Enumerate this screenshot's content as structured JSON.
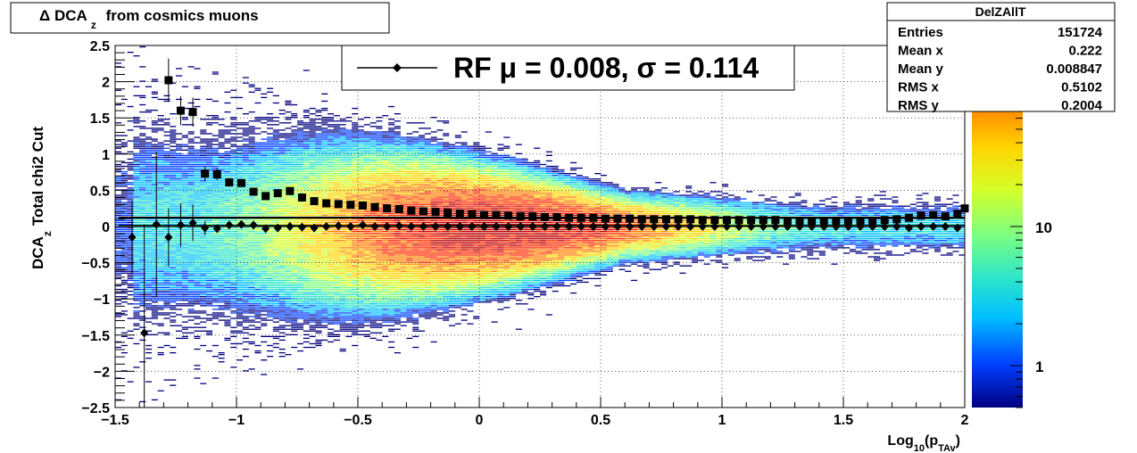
{
  "title": {
    "prefix": "Δ DCA",
    "sub": "z",
    "suffix": "from cosmics muons"
  },
  "stats_box": {
    "name": "DelZAllT",
    "rows": [
      {
        "label": "Entries",
        "value": "151724"
      },
      {
        "label": "Mean x",
        "value": "0.222"
      },
      {
        "label": "Mean y",
        "value": "0.008847"
      },
      {
        "label": "RMS x",
        "value": "0.5102"
      },
      {
        "label": "RMS y",
        "value": "0.2004"
      }
    ]
  },
  "legend": {
    "text": "RF μ =  0.008, σ =   0.114"
  },
  "chart_data": {
    "type": "heatmap",
    "xlabel": {
      "main": "Log",
      "sub1": "10",
      "mid": "(p",
      "sub2": "TAv",
      "end": ")"
    },
    "ylabel": {
      "main": "DCA",
      "sub": "z",
      "rest": "Total chi2 Cut"
    },
    "xlim": [
      -1.5,
      2
    ],
    "ylim": [
      -2.5,
      2.5
    ],
    "xticks": [
      -1.5,
      -1,
      -0.5,
      0,
      0.5,
      1,
      1.5,
      2
    ],
    "xtick_labels": [
      "−1.5",
      "−1",
      "−0.5",
      "0",
      "0.5",
      "1",
      "1.5",
      "2"
    ],
    "yticks": [
      -2.5,
      -2,
      -1.5,
      -1,
      -0.5,
      0,
      0.5,
      1,
      1.5,
      2,
      2.5
    ],
    "ytick_labels": [
      "−2.5",
      "−2",
      "−1.5",
      "−1",
      "−0.5",
      "0",
      "0.5",
      "1",
      "1.5",
      "2",
      "2.5"
    ],
    "grid": true,
    "z_scale": "log",
    "zlim": [
      0.5,
      200
    ],
    "colorbar_ticks": [
      1,
      10
    ],
    "colorbar_tick_labels": [
      "1",
      "10"
    ],
    "colormap": [
      "#00007f",
      "#0040ff",
      "#00bfff",
      "#2ee6c8",
      "#7fff7f",
      "#d4ff2a",
      "#ffd400",
      "#ff7f00",
      "#ff2a00",
      "#bf0000"
    ],
    "series": [
      {
        "marker": "diamond",
        "x": [
          -1.43,
          -1.38,
          -1.33,
          -1.28,
          -1.23,
          -1.18,
          -1.13,
          -1.08,
          -1.03,
          -0.98,
          -0.93,
          -0.88,
          -0.83,
          -0.78,
          -0.73,
          -0.68,
          -0.63,
          -0.58,
          -0.53,
          -0.48,
          -0.43,
          -0.38,
          -0.33,
          -0.28,
          -0.23,
          -0.18,
          -0.13,
          -0.08,
          -0.03,
          0.02,
          0.07,
          0.12,
          0.17,
          0.22,
          0.27,
          0.32,
          0.37,
          0.42,
          0.47,
          0.52,
          0.57,
          0.62,
          0.67,
          0.72,
          0.77,
          0.82,
          0.87,
          0.92,
          0.97,
          1.02,
          1.07,
          1.12,
          1.17,
          1.22,
          1.27,
          1.32,
          1.37,
          1.42,
          1.47,
          1.52,
          1.57,
          1.62,
          1.67,
          1.72,
          1.77,
          1.82,
          1.87,
          1.92,
          1.97
        ],
        "y": [
          -0.15,
          -1.47,
          0.03,
          -0.15,
          0.02,
          0.05,
          -0.02,
          -0.03,
          0.02,
          0.03,
          0.02,
          -0.03,
          -0.02,
          0.0,
          -0.01,
          -0.02,
          0.0,
          0.01,
          0.0,
          0.02,
          0.0,
          0.0,
          0.01,
          0.0,
          0.0,
          0.0,
          0.0,
          0.0,
          0.0,
          0.0,
          0.0,
          0.0,
          0.0,
          0.0,
          0.0,
          0.0,
          0.0,
          0.0,
          0.0,
          0.0,
          0.0,
          0.0,
          0.0,
          0.0,
          0.0,
          0.0,
          0.0,
          0.0,
          0.0,
          0.0,
          0.0,
          0.0,
          0.0,
          0.0,
          0.0,
          0.0,
          0.0,
          0.0,
          0.0,
          0.0,
          0.0,
          0.0,
          0.0,
          0.0,
          -0.02,
          0.0,
          0.0,
          0.0,
          -0.02
        ],
        "yerr": [
          0.5,
          1.5,
          1.0,
          0.4,
          0.3,
          0.25,
          0.1,
          0.05,
          0.05,
          0.05,
          0.03,
          0.03,
          0.02,
          0.02,
          0.02,
          0.02,
          0.02,
          0.02,
          0.02,
          0.02,
          0.01,
          0.01,
          0.01,
          0.01,
          0.01,
          0.01,
          0.01,
          0.01,
          0.01,
          0.01,
          0.01,
          0.01,
          0.01,
          0.01,
          0.01,
          0.01,
          0.01,
          0.01,
          0.01,
          0.01,
          0.01,
          0.01,
          0.01,
          0.01,
          0.01,
          0.01,
          0.01,
          0.01,
          0.01,
          0.01,
          0.01,
          0.01,
          0.01,
          0.01,
          0.01,
          0.01,
          0.01,
          0.01,
          0.01,
          0.01,
          0.01,
          0.01,
          0.01,
          0.02,
          0.02,
          0.02,
          0.03,
          0.04,
          0.05
        ]
      },
      {
        "marker": "square",
        "x": [
          -1.28,
          -1.23,
          -1.18,
          -1.13,
          -1.08,
          -1.03,
          -0.98,
          -0.93,
          -0.88,
          -0.83,
          -0.78,
          -0.73,
          -0.68,
          -0.63,
          -0.58,
          -0.53,
          -0.48,
          -0.43,
          -0.38,
          -0.33,
          -0.28,
          -0.23,
          -0.18,
          -0.13,
          -0.08,
          -0.03,
          0.02,
          0.07,
          0.12,
          0.17,
          0.22,
          0.27,
          0.32,
          0.37,
          0.42,
          0.47,
          0.52,
          0.57,
          0.62,
          0.67,
          0.72,
          0.77,
          0.82,
          0.87,
          0.92,
          0.97,
          1.02,
          1.07,
          1.12,
          1.17,
          1.22,
          1.27,
          1.32,
          1.37,
          1.42,
          1.47,
          1.52,
          1.57,
          1.62,
          1.67,
          1.72,
          1.77,
          1.82,
          1.87,
          1.92,
          1.97,
          2.0
        ],
        "y": [
          2.02,
          1.6,
          1.58,
          0.73,
          0.72,
          0.61,
          0.6,
          0.48,
          0.42,
          0.46,
          0.49,
          0.4,
          0.35,
          0.32,
          0.31,
          0.3,
          0.29,
          0.27,
          0.25,
          0.24,
          0.22,
          0.21,
          0.2,
          0.19,
          0.18,
          0.17,
          0.16,
          0.16,
          0.15,
          0.14,
          0.14,
          0.13,
          0.13,
          0.12,
          0.12,
          0.12,
          0.11,
          0.11,
          0.11,
          0.1,
          0.1,
          0.1,
          0.1,
          0.1,
          0.09,
          0.09,
          0.09,
          0.09,
          0.09,
          0.09,
          0.09,
          0.08,
          0.08,
          0.08,
          0.08,
          0.08,
          0.08,
          0.08,
          0.08,
          0.09,
          0.1,
          0.12,
          0.15,
          0.16,
          0.14,
          0.17,
          0.25
        ],
        "yerr": [
          0.3,
          0.2,
          0.2,
          0.1,
          0.08,
          0.06,
          0.05,
          0.04,
          0.03,
          0.03,
          0.03,
          0.02,
          0.02,
          0.02,
          0.02,
          0.02,
          0.01,
          0.01,
          0.01,
          0.01,
          0.01,
          0.01,
          0.01,
          0.01,
          0.01,
          0.01,
          0.01,
          0.01,
          0.01,
          0.01,
          0.01,
          0.01,
          0.01,
          0.01,
          0.01,
          0.01,
          0.01,
          0.01,
          0.01,
          0.01,
          0.01,
          0.01,
          0.01,
          0.01,
          0.01,
          0.01,
          0.01,
          0.01,
          0.01,
          0.01,
          0.01,
          0.01,
          0.01,
          0.01,
          0.01,
          0.01,
          0.01,
          0.01,
          0.01,
          0.01,
          0.01,
          0.02,
          0.02,
          0.02,
          0.03,
          0.04,
          0.12
        ]
      }
    ],
    "lines": [
      {
        "style": "solid",
        "y": 0.008
      },
      {
        "style": "solid",
        "y": 0.122
      }
    ]
  }
}
